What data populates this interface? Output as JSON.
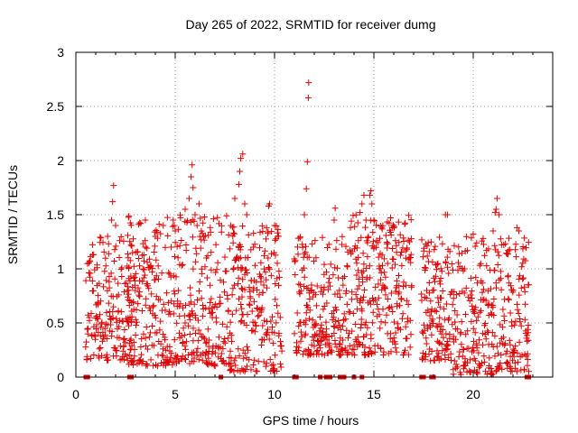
{
  "chart_data": {
    "type": "scatter",
    "title": "Day 265 of 2022, SRMTID for receiver dumg",
    "xlabel": "GPS time / hours",
    "ylabel": "SRMTID / TECUs",
    "xlim": [
      0,
      24
    ],
    "ylim": [
      0,
      3
    ],
    "x_ticks": [
      0,
      5,
      10,
      15,
      20
    ],
    "y_ticks": [
      0,
      0.5,
      1,
      1.5,
      2,
      2.5,
      3
    ],
    "x_tick_labels": [
      "0",
      "5",
      "10",
      "15",
      "20"
    ],
    "y_tick_labels": [
      "0",
      "0.5",
      "1",
      "1.5",
      "2",
      "2.5",
      "3"
    ],
    "grid": true,
    "legend": "none",
    "marker": "plus",
    "series_color": "#e00000",
    "zero_markers": [
      0.5,
      0.6,
      2.7,
      2.8,
      7.3,
      11.0,
      11.1,
      12.3,
      12.6,
      12.8,
      13.3,
      13.5,
      14.0,
      14.4,
      17.4,
      17.5,
      17.9,
      18.0,
      22.7,
      22.8
    ],
    "series": [
      {
        "name": "dumg",
        "envelope": [
          {
            "x_start": 0.5,
            "x_end": 3.0,
            "y_min": 0.15,
            "y_max": 1.3
          },
          {
            "x_start": 2.6,
            "x_end": 7.6,
            "y_min": 0.1,
            "y_max": 1.5
          },
          {
            "x_start": 7.6,
            "x_end": 10.4,
            "y_min": 0.05,
            "y_max": 1.4
          },
          {
            "x_start": 11.0,
            "x_end": 13.8,
            "y_min": 0.2,
            "y_max": 1.3
          },
          {
            "x_start": 13.8,
            "x_end": 16.9,
            "y_min": 0.2,
            "y_max": 1.5
          },
          {
            "x_start": 17.4,
            "x_end": 19.0,
            "y_min": 0.15,
            "y_max": 1.3
          },
          {
            "x_start": 19.0,
            "x_end": 21.0,
            "y_min": 0.02,
            "y_max": 1.3
          },
          {
            "x_start": 21.0,
            "x_end": 22.8,
            "y_min": 0.05,
            "y_max": 1.3
          }
        ],
        "peaks": [
          {
            "x": 1.6,
            "y": 1.3
          },
          {
            "x": 1.8,
            "y": 1.45
          },
          {
            "x": 1.85,
            "y": 1.62
          },
          {
            "x": 1.9,
            "y": 1.77
          },
          {
            "x": 2.0,
            "y": 1.4
          },
          {
            "x": 3.5,
            "y": 1.2
          },
          {
            "x": 3.5,
            "y": 1.45
          },
          {
            "x": 4.0,
            "y": 1.3
          },
          {
            "x": 4.4,
            "y": 1.4
          },
          {
            "x": 4.8,
            "y": 1.2
          },
          {
            "x": 4.9,
            "y": 1.45
          },
          {
            "x": 5.0,
            "y": 1.35
          },
          {
            "x": 5.5,
            "y": 1.55
          },
          {
            "x": 5.7,
            "y": 1.65
          },
          {
            "x": 5.8,
            "y": 1.85
          },
          {
            "x": 5.85,
            "y": 1.96
          },
          {
            "x": 5.9,
            "y": 1.75
          },
          {
            "x": 6.0,
            "y": 1.5
          },
          {
            "x": 6.1,
            "y": 1.4
          },
          {
            "x": 6.2,
            "y": 1.6
          },
          {
            "x": 7.8,
            "y": 1.4
          },
          {
            "x": 8.0,
            "y": 1.65
          },
          {
            "x": 8.2,
            "y": 1.78
          },
          {
            "x": 8.25,
            "y": 1.9
          },
          {
            "x": 8.3,
            "y": 2.02
          },
          {
            "x": 8.4,
            "y": 2.06
          },
          {
            "x": 8.5,
            "y": 1.6
          },
          {
            "x": 8.6,
            "y": 1.5
          },
          {
            "x": 9.6,
            "y": 1.38
          },
          {
            "x": 9.7,
            "y": 1.58
          },
          {
            "x": 9.75,
            "y": 1.6
          },
          {
            "x": 10.2,
            "y": 1.3
          },
          {
            "x": 11.5,
            "y": 1.5
          },
          {
            "x": 11.6,
            "y": 1.74
          },
          {
            "x": 11.65,
            "y": 1.99
          },
          {
            "x": 11.7,
            "y": 2.58
          },
          {
            "x": 11.72,
            "y": 2.72
          },
          {
            "x": 13.0,
            "y": 1.45
          },
          {
            "x": 13.05,
            "y": 1.56
          },
          {
            "x": 14.3,
            "y": 1.52
          },
          {
            "x": 14.4,
            "y": 1.6
          },
          {
            "x": 14.5,
            "y": 1.68
          },
          {
            "x": 14.6,
            "y": 1.45
          },
          {
            "x": 14.8,
            "y": 1.68
          },
          {
            "x": 14.85,
            "y": 1.72
          },
          {
            "x": 14.9,
            "y": 1.6
          },
          {
            "x": 15.0,
            "y": 1.45
          },
          {
            "x": 18.6,
            "y": 1.5
          },
          {
            "x": 18.7,
            "y": 1.5
          },
          {
            "x": 20.0,
            "y": 1.32
          },
          {
            "x": 20.5,
            "y": 1.28
          },
          {
            "x": 21.0,
            "y": 1.35
          },
          {
            "x": 21.1,
            "y": 1.52
          },
          {
            "x": 21.15,
            "y": 1.55
          },
          {
            "x": 21.2,
            "y": 1.65
          },
          {
            "x": 21.3,
            "y": 1.5
          },
          {
            "x": 22.2,
            "y": 1.38
          },
          {
            "x": 22.3,
            "y": 1.35
          },
          {
            "x": 12.5,
            "y": 0.83
          }
        ],
        "sample_interval_hours": 0.025
      }
    ]
  }
}
